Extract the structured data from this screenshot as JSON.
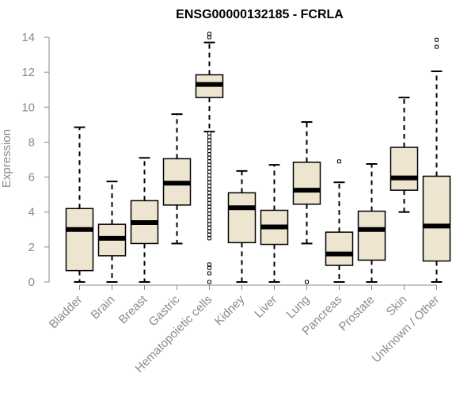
{
  "chart_data": {
    "type": "boxplot",
    "title": "ENSG00000132185 - FCRLA",
    "xlabel": "",
    "ylabel": "Expression",
    "ylim": [
      0,
      14
    ],
    "yticks": [
      0,
      2,
      4,
      6,
      8,
      10,
      12,
      14
    ],
    "grid": false,
    "colors": {
      "box_fill": "#ede5cf",
      "box_stroke": "#000000",
      "axis": "#8a8a8a",
      "tick_label": "#8a8a8a",
      "title": "#000000"
    },
    "categories": [
      "Bladder",
      "Brain",
      "Breast",
      "Gastric",
      "Hematopoietic cells",
      "Kidney",
      "Liver",
      "Lung",
      "Pancreas",
      "Prostate",
      "Skin",
      "Unknown / Other"
    ],
    "boxes": [
      {
        "category": "Bladder",
        "whisker_low": 0.0,
        "q1": 0.65,
        "median": 3.0,
        "q3": 4.2,
        "whisker_high": 8.85,
        "outliers": []
      },
      {
        "category": "Brain",
        "whisker_low": 0.0,
        "q1": 1.5,
        "median": 2.5,
        "q3": 3.3,
        "whisker_high": 5.75,
        "outliers": []
      },
      {
        "category": "Breast",
        "whisker_low": 0.0,
        "q1": 2.2,
        "median": 3.4,
        "q3": 4.65,
        "whisker_high": 7.1,
        "outliers": []
      },
      {
        "category": "Gastric",
        "whisker_low": 2.2,
        "q1": 4.4,
        "median": 5.65,
        "q3": 7.05,
        "whisker_high": 9.6,
        "outliers": []
      },
      {
        "category": "Hematopoietic cells",
        "whisker_low": 8.6,
        "q1": 10.55,
        "median": 11.3,
        "q3": 11.85,
        "whisker_high": 13.7,
        "outliers": [
          14.2,
          14.0,
          8.5,
          8.3,
          8.1,
          7.9,
          7.7,
          7.5,
          7.3,
          7.1,
          6.9,
          6.7,
          6.5,
          6.3,
          6.1,
          5.9,
          5.7,
          5.5,
          5.3,
          5.1,
          4.9,
          4.7,
          4.5,
          4.3,
          4.1,
          3.9,
          3.7,
          3.5,
          3.3,
          3.1,
          2.9,
          2.7,
          2.5,
          1.0,
          0.8,
          0.5,
          0.0
        ]
      },
      {
        "category": "Kidney",
        "whisker_low": 0.0,
        "q1": 2.25,
        "median": 4.25,
        "q3": 5.1,
        "whisker_high": 6.35,
        "outliers": []
      },
      {
        "category": "Liver",
        "whisker_low": 0.0,
        "q1": 2.15,
        "median": 3.15,
        "q3": 4.1,
        "whisker_high": 6.7,
        "outliers": []
      },
      {
        "category": "Lung",
        "whisker_low": 2.2,
        "q1": 4.45,
        "median": 5.25,
        "q3": 6.85,
        "whisker_high": 9.15,
        "outliers": [
          0.0
        ]
      },
      {
        "category": "Pancreas",
        "whisker_low": 0.0,
        "q1": 0.95,
        "median": 1.6,
        "q3": 2.85,
        "whisker_high": 5.7,
        "outliers": [
          6.9
        ]
      },
      {
        "category": "Prostate",
        "whisker_low": 0.0,
        "q1": 1.25,
        "median": 3.0,
        "q3": 4.05,
        "whisker_high": 6.75,
        "outliers": []
      },
      {
        "category": "Skin",
        "whisker_low": 4.0,
        "q1": 5.25,
        "median": 5.95,
        "q3": 7.7,
        "whisker_high": 10.55,
        "outliers": []
      },
      {
        "category": "Unknown / Other",
        "whisker_low": 0.0,
        "q1": 1.2,
        "median": 3.2,
        "q3": 6.05,
        "whisker_high": 12.05,
        "outliers": [
          13.85,
          13.45
        ]
      }
    ]
  }
}
